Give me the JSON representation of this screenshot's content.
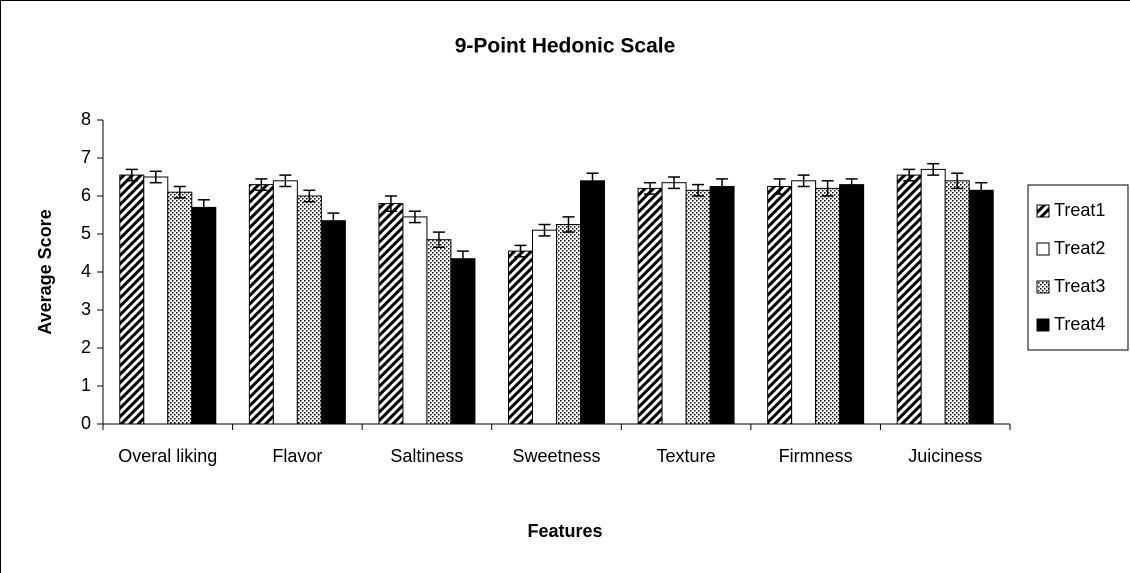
{
  "chart_data": {
    "type": "bar",
    "title": "9-Point Hedonic Scale",
    "xlabel": "Features",
    "ylabel": "Average Score",
    "categories": [
      "Overal liking",
      "Flavor",
      "Saltiness",
      "Sweetness",
      "Texture",
      "Firmness",
      "Juiciness"
    ],
    "series": [
      {
        "name": "Treat1",
        "color": "#000000",
        "pattern": "hatch",
        "values": [
          6.55,
          6.3,
          5.8,
          4.55,
          6.2,
          6.25,
          6.55
        ],
        "errors": [
          0.15,
          0.15,
          0.2,
          0.15,
          0.15,
          0.2,
          0.15
        ]
      },
      {
        "name": "Treat2",
        "color": "#000000",
        "pattern": "none",
        "values": [
          6.5,
          6.4,
          5.45,
          5.1,
          6.35,
          6.4,
          6.7
        ],
        "errors": [
          0.15,
          0.15,
          0.15,
          0.15,
          0.15,
          0.15,
          0.15
        ]
      },
      {
        "name": "Treat3",
        "color": "#000000",
        "pattern": "dots",
        "values": [
          6.1,
          6.0,
          4.85,
          5.25,
          6.15,
          6.2,
          6.4
        ],
        "errors": [
          0.15,
          0.15,
          0.2,
          0.2,
          0.15,
          0.2,
          0.2
        ]
      },
      {
        "name": "Treat4",
        "color": "#000000",
        "pattern": "solid",
        "values": [
          5.7,
          5.35,
          4.35,
          6.4,
          6.25,
          6.3,
          6.15
        ],
        "errors": [
          0.2,
          0.2,
          0.2,
          0.2,
          0.2,
          0.15,
          0.2
        ]
      }
    ],
    "ylim": [
      0,
      8
    ],
    "yticks": [
      0,
      1,
      2,
      3,
      4,
      5,
      6,
      7,
      8
    ],
    "legend": "right"
  }
}
